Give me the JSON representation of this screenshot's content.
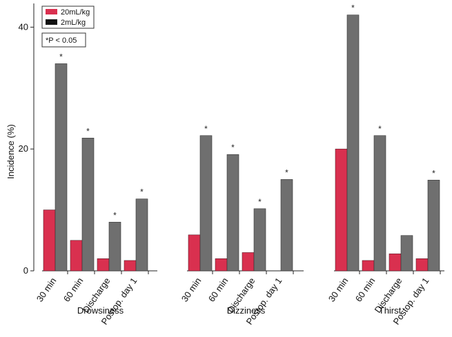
{
  "chart_data": {
    "type": "bar",
    "ylabel": "Incidence (%)",
    "ylim": [
      0,
      44
    ],
    "yticks": [
      0,
      20,
      40
    ],
    "grid": false,
    "legend_position": "top-left",
    "series": [
      {
        "name": "20mL/kg",
        "color": "#d9304f"
      },
      {
        "name": "2mL/kg",
        "color": "#6f6f6f"
      }
    ],
    "note": "*P < 0.05",
    "groups": [
      {
        "label": "Drowsiness",
        "categories": [
          "30 min",
          "60 min",
          "Discharge",
          "Postop. day 1"
        ],
        "values_20mL": [
          10,
          5,
          2,
          1.7
        ],
        "values_2mL": [
          34,
          21.8,
          8,
          11.8
        ],
        "significant": [
          true,
          true,
          true,
          true
        ]
      },
      {
        "label": "Dizziness",
        "categories": [
          "30 min",
          "60 min",
          "Discharge",
          "Postop. day 1"
        ],
        "values_20mL": [
          5.9,
          2,
          3,
          0
        ],
        "values_2mL": [
          22.2,
          19.1,
          10.2,
          15
        ],
        "significant": [
          true,
          true,
          true,
          true
        ]
      },
      {
        "label": "Thirst",
        "categories": [
          "30 min",
          "60 min",
          "Discharge",
          "Postop. day 1"
        ],
        "values_20mL": [
          20,
          1.7,
          2.8,
          2
        ],
        "values_2mL": [
          42,
          22.2,
          5.8,
          14.9
        ],
        "significant": [
          true,
          true,
          false,
          true
        ]
      }
    ]
  }
}
